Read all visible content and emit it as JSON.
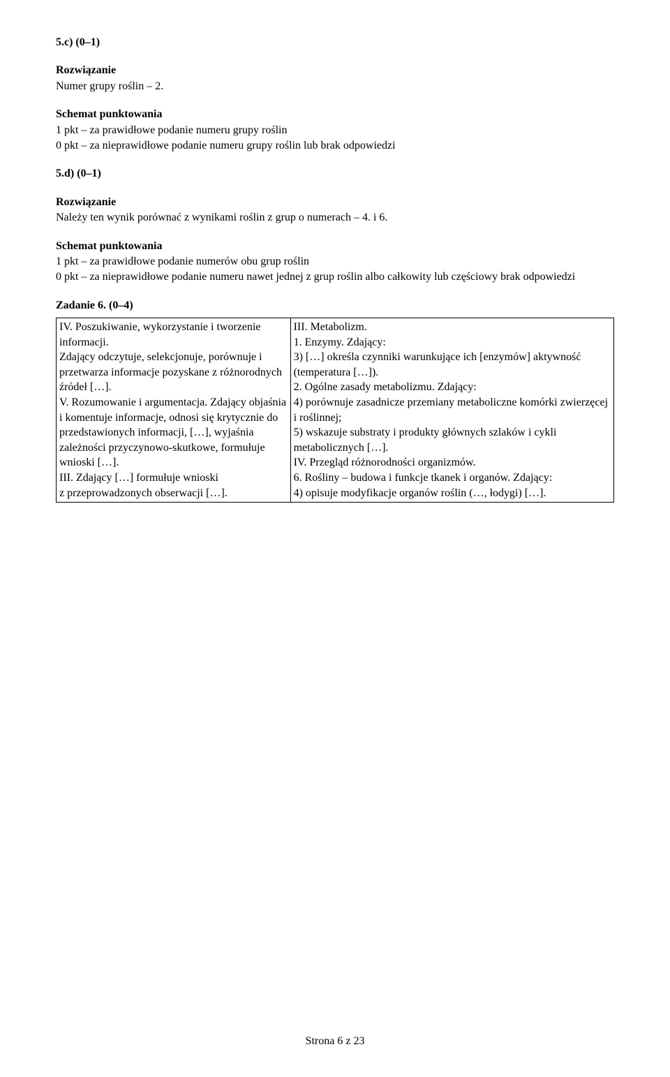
{
  "task5c": {
    "heading": "5.c) (0–1)",
    "rozwiazanie_label": "Rozwiązanie",
    "rozwiazanie_text": "Numer grupy roślin – 2.",
    "schemat_label": "Schemat punktowania",
    "schemat_line1": "1 pkt – za prawidłowe podanie numeru grupy roślin",
    "schemat_line2": "0 pkt – za nieprawidłowe podanie numeru grupy roślin lub brak odpowiedzi"
  },
  "task5d": {
    "heading": "5.d) (0–1)",
    "rozwiazanie_label": "Rozwiązanie",
    "rozwiazanie_text": "Należy ten wynik porównać z wynikami roślin z grup o numerach – 4. i 6.",
    "schemat_label": "Schemat punktowania",
    "schemat_line1": "1 pkt – za prawidłowe podanie numerów obu grup roślin",
    "schemat_line2": "0 pkt – za nieprawidłowe podanie numeru nawet jednej z grup roślin albo całkowity lub częściowy brak odpowiedzi"
  },
  "task6": {
    "heading": "Zadanie 6. (0–4)",
    "left_col": "IV. Poszukiwanie, wykorzystanie i tworzenie informacji.\nZdający odczytuje, selekcjonuje, porównuje i przetwarza informacje pozyskane z różnorodnych źródeł […].\nV. Rozumowanie i argumentacja. Zdający objaśnia i komentuje informacje, odnosi się krytycznie do przedstawionych informacji, […], wyjaśnia zależności przyczynowo-skutkowe, formułuje wnioski […].\nIII. Zdający […] formułuje wnioski z przeprowadzonych obserwacji […].",
    "right_col": "III. Metabolizm.\n1. Enzymy. Zdający:\n3) […] określa czynniki warunkujące ich [enzymów] aktywność (temperatura […]).\n2. Ogólne zasady metabolizmu. Zdający:\n4) porównuje zasadnicze przemiany metaboliczne komórki zwierzęcej i roślinnej;\n5) wskazuje substraty i produkty głównych szlaków i cykli metabolicznych […].\nIV. Przegląd różnorodności organizmów.\n6. Rośliny – budowa i funkcje tkanek i organów. Zdający:\n4) opisuje modyfikacje organów roślin (…, łodygi) […]."
  },
  "footer": "Strona 6 z 23"
}
